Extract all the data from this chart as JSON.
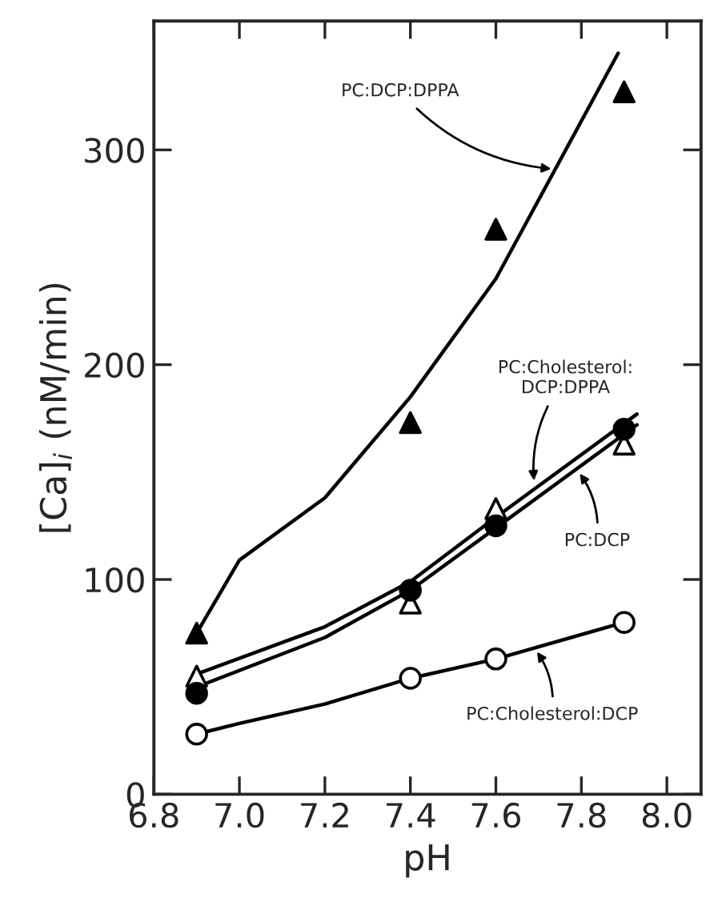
{
  "chart_data": {
    "type": "scatter",
    "xlabel": "pH",
    "ylabel": "[Ca]$_{i}$ (nM/min)",
    "xlim": [
      6.8,
      8.08
    ],
    "xticks": [
      {
        "value": 6.8,
        "label": "6.8"
      },
      {
        "value": 7.0,
        "label": "7.0"
      },
      {
        "value": 7.2,
        "label": "7.2"
      },
      {
        "value": 7.4,
        "label": "7.4"
      },
      {
        "value": 7.6,
        "label": "7.6"
      },
      {
        "value": 7.8,
        "label": "7.8"
      },
      {
        "value": 8.0,
        "label": "8.0"
      }
    ],
    "ylim": [
      0,
      360
    ],
    "yticks": [
      0,
      100,
      200,
      300
    ],
    "grid": false,
    "legend": false,
    "series": [
      {
        "type": "line",
        "color": "#000000",
        "marker": "none",
        "line_style": "solid",
        "x": [
          6.9,
          7.0,
          7.2,
          7.4,
          7.6,
          7.886
        ],
        "values": [
          75,
          109,
          138,
          185,
          240,
          345
        ]
      },
      {
        "type": "line",
        "color": "#000000",
        "marker": "none",
        "line_style": "solid",
        "x": [
          6.9,
          7.2,
          7.4,
          7.6,
          7.93
        ],
        "values": [
          56,
          78,
          99,
          129,
          177
        ]
      },
      {
        "type": "line",
        "color": "#000000",
        "marker": "none",
        "line_style": "solid",
        "x": [
          6.9,
          7.2,
          7.4,
          7.6,
          7.93
        ],
        "values": [
          50,
          73,
          95,
          124,
          172
        ]
      },
      {
        "type": "line",
        "color": "#000000",
        "marker": "none",
        "line_style": "solid",
        "x": [
          6.9,
          7.0,
          7.2,
          7.4,
          7.6,
          7.9
        ],
        "values": [
          28,
          33,
          42,
          54,
          63,
          80
        ]
      },
      {
        "color": "#000000",
        "marker": "triangle",
        "x": [
          6.9,
          7.4,
          7.6,
          7.9
        ],
        "values": [
          75,
          173,
          263,
          327
        ]
      },
      {
        "color": "#ffffff",
        "marker": "triangle",
        "x": [
          6.9,
          7.4,
          7.6,
          7.9
        ],
        "values": [
          55,
          89,
          133,
          163
        ]
      },
      {
        "color": "#000000",
        "marker": "circle",
        "x": [
          6.9,
          7.4,
          7.6,
          7.9
        ],
        "values": [
          47,
          95,
          125,
          170
        ]
      },
      {
        "color": "#ffffff",
        "marker": "circle",
        "x": [
          6.9,
          7.4,
          7.6,
          7.9
        ],
        "values": [
          28,
          54,
          63,
          80
        ]
      }
    ],
    "annotations": [
      {
        "text": "PC:DCP:DPPA",
        "x": 7.74,
        "y": 291
      },
      {
        "text": "PC:Cholesterol:\nDCP:DPPA",
        "x": 7.69,
        "y": 144
      },
      {
        "text": "PC:DCP",
        "x": 7.79,
        "y": 151
      },
      {
        "text": "PC:Cholesterol:DCP",
        "x": 7.69,
        "y": 68
      }
    ]
  }
}
